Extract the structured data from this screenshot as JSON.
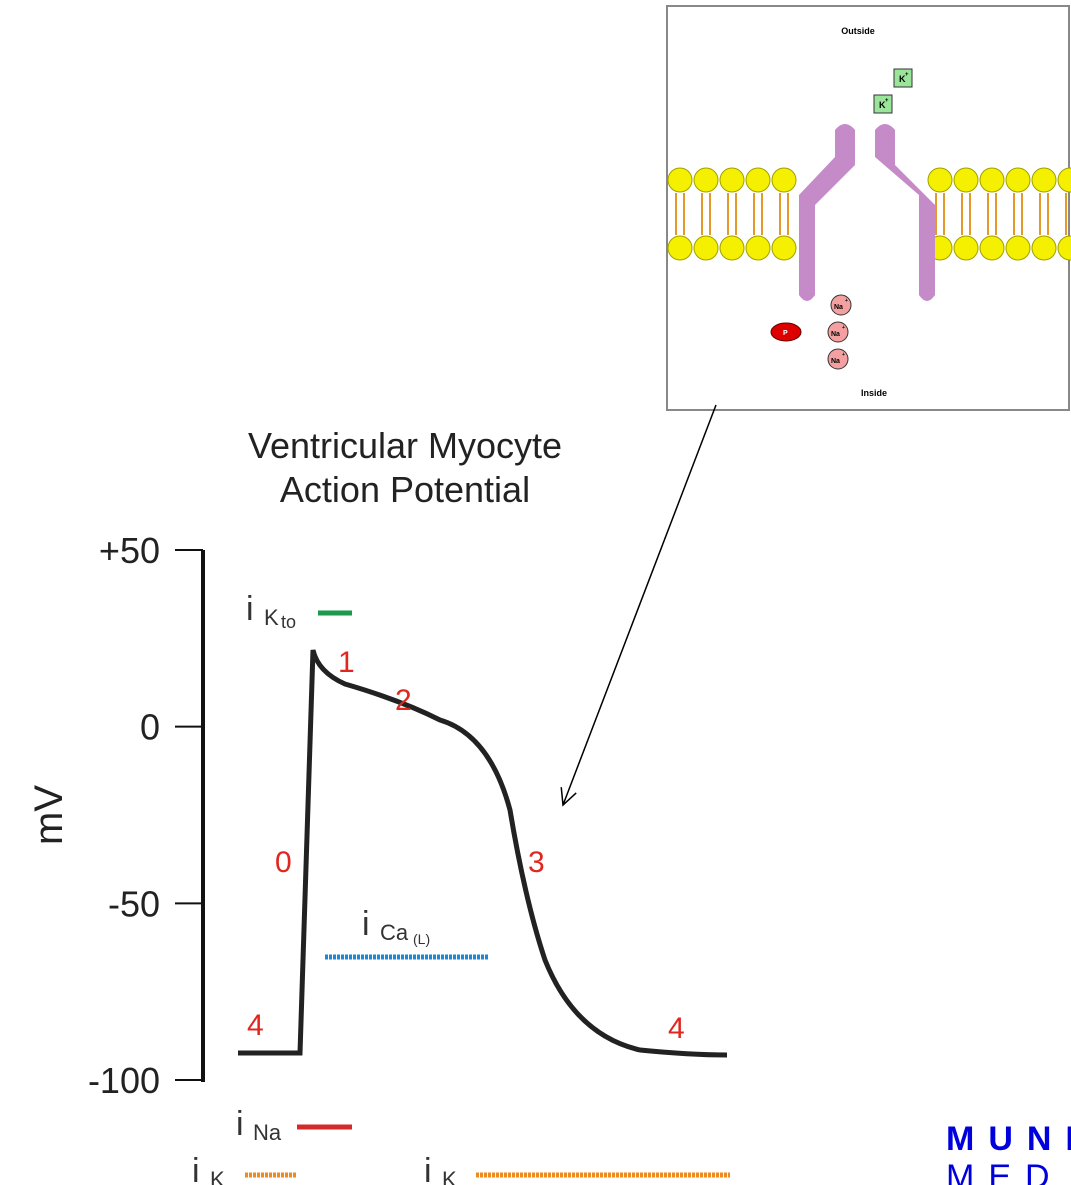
{
  "inset": {
    "outside": "Outside",
    "inside": "Inside",
    "potassium": "K",
    "sodium": "Na",
    "charge": "+",
    "phosphate": "P"
  },
  "figure": {
    "title": [
      "Ventricular Myocyte",
      "Action Potential"
    ],
    "y_label": "mV",
    "y_ticks": [
      "+50",
      "0",
      "-50",
      "-100"
    ],
    "phases": [
      "1",
      "2",
      "0",
      "3",
      "4",
      "4"
    ],
    "currents": {
      "i": "i",
      "k_to": [
        "K",
        "to"
      ],
      "ca": [
        "Ca",
        "(L)"
      ],
      "na": "Na",
      "k": "K"
    }
  },
  "logo": {
    "line1": "MUNI",
    "line2": "MED"
  }
}
